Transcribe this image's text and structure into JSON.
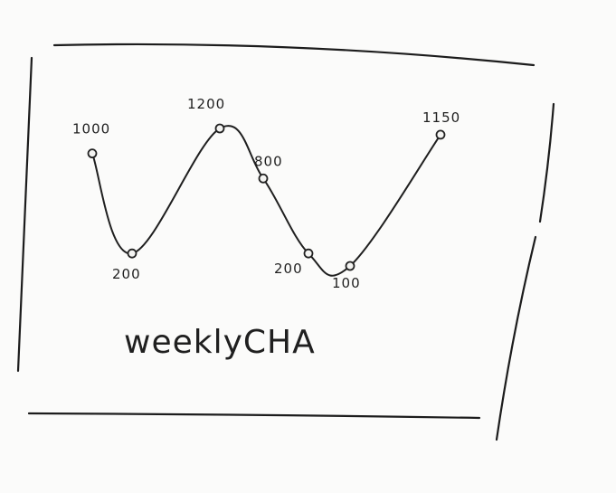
{
  "chart_data": {
    "type": "line",
    "title": "weeklyCHA",
    "x": [
      1,
      2,
      3,
      4,
      5,
      6,
      7
    ],
    "series": [
      {
        "values": [
          1000,
          200,
          1200,
          800,
          200,
          100,
          1150
        ],
        "labels": [
          "1000",
          "200",
          "1200",
          "800",
          "200",
          "100",
          "1150"
        ]
      }
    ],
    "xlabel": "",
    "ylabel": "",
    "grid": false
  }
}
